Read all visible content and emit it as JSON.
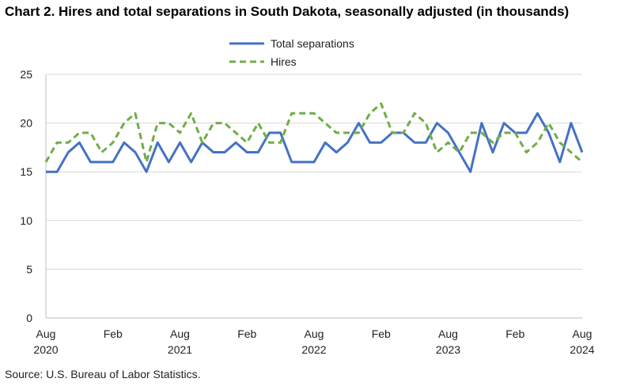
{
  "title": "Chart 2. Hires and total separations in South Dakota, seasonally adjusted (in thousands)",
  "source": "Source: U.S. Bureau of Labor Statistics.",
  "legend": [
    {
      "label": "Total separations",
      "color": "#4472c4",
      "dash": "solid"
    },
    {
      "label": "Hires",
      "color": "#70ad47",
      "dash": "dashed"
    }
  ],
  "chart_data": {
    "type": "line",
    "ylim": [
      0,
      25
    ],
    "yticks": [
      0,
      5,
      10,
      15,
      20,
      25
    ],
    "grid": "horizontal",
    "legend_position": "top-center",
    "x": [
      "2020-08",
      "2020-09",
      "2020-10",
      "2020-11",
      "2020-12",
      "2021-01",
      "2021-02",
      "2021-03",
      "2021-04",
      "2021-05",
      "2021-06",
      "2021-07",
      "2021-08",
      "2021-09",
      "2021-10",
      "2021-11",
      "2021-12",
      "2022-01",
      "2022-02",
      "2022-03",
      "2022-04",
      "2022-05",
      "2022-06",
      "2022-07",
      "2022-08",
      "2022-09",
      "2022-10",
      "2022-11",
      "2022-12",
      "2023-01",
      "2023-02",
      "2023-03",
      "2023-04",
      "2023-05",
      "2023-06",
      "2023-07",
      "2023-08",
      "2023-09",
      "2023-10",
      "2023-11",
      "2023-12",
      "2024-01",
      "2024-02",
      "2024-03",
      "2024-04",
      "2024-05",
      "2024-06",
      "2024-07",
      "2024-08"
    ],
    "xticks": [
      {
        "label": "Aug",
        "year": "2020",
        "index": 0
      },
      {
        "label": "Feb",
        "year": "",
        "index": 6
      },
      {
        "label": "Aug",
        "year": "2021",
        "index": 12
      },
      {
        "label": "Feb",
        "year": "",
        "index": 18
      },
      {
        "label": "Aug",
        "year": "2022",
        "index": 24
      },
      {
        "label": "Feb",
        "year": "",
        "index": 30
      },
      {
        "label": "Aug",
        "year": "2023",
        "index": 36
      },
      {
        "label": "Feb",
        "year": "",
        "index": 42
      },
      {
        "label": "Aug",
        "year": "2024",
        "index": 48
      }
    ],
    "series": [
      {
        "name": "Total separations",
        "color": "#4472c4",
        "dash": "solid",
        "values": [
          15,
          15,
          17,
          18,
          16,
          16,
          16,
          18,
          17,
          15,
          18,
          16,
          18,
          16,
          18,
          17,
          17,
          18,
          17,
          17,
          19,
          19,
          16,
          16,
          16,
          18,
          17,
          18,
          20,
          18,
          18,
          19,
          19,
          18,
          18,
          20,
          19,
          17,
          15,
          20,
          17,
          20,
          19,
          19,
          21,
          19,
          16,
          20,
          17
        ]
      },
      {
        "name": "Hires",
        "color": "#70ad47",
        "dash": "dashed",
        "values": [
          16,
          18,
          18,
          19,
          19,
          17,
          18,
          20,
          21,
          16,
          20,
          20,
          19,
          21,
          18,
          20,
          20,
          19,
          18,
          20,
          18,
          18,
          21,
          21,
          21,
          20,
          19,
          19,
          19,
          21,
          22,
          19,
          19,
          21,
          20,
          17,
          18,
          17,
          19,
          19,
          18,
          19,
          19,
          17,
          18,
          20,
          18,
          17,
          16
        ]
      }
    ]
  }
}
